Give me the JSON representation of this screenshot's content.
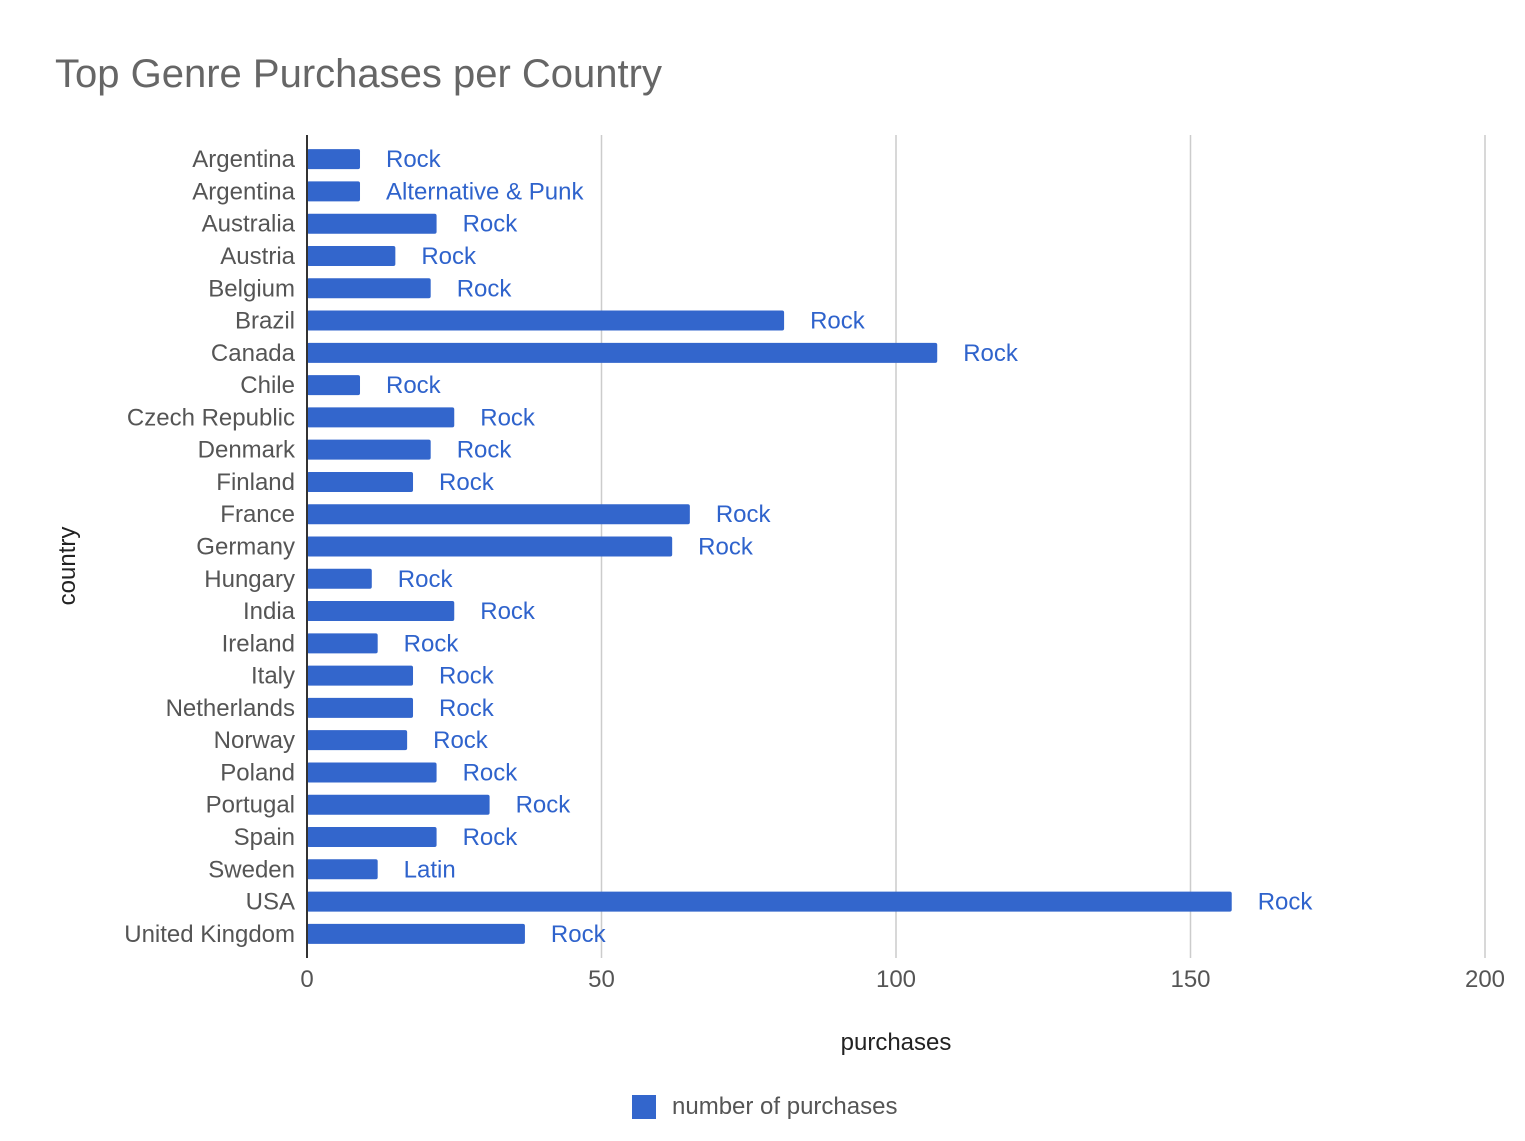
{
  "chart_data": {
    "type": "bar",
    "orientation": "horizontal",
    "title": "Top Genre Purchases per Country",
    "xlabel": "purchases",
    "ylabel": "country",
    "xlim": [
      0,
      200
    ],
    "xticks": [
      "0",
      "50",
      "100",
      "150",
      "200"
    ],
    "grid": true,
    "legend_position": "bottom",
    "bar_color": "#3366cc",
    "label_color": "#2f63cc",
    "categories": [
      "Argentina",
      "Argentina",
      "Australia",
      "Austria",
      "Belgium",
      "Brazil",
      "Canada",
      "Chile",
      "Czech Republic",
      "Denmark",
      "Finland",
      "France",
      "Germany",
      "Hungary",
      "India",
      "Ireland",
      "Italy",
      "Netherlands",
      "Norway",
      "Poland",
      "Portugal",
      "Spain",
      "Sweden",
      "USA",
      "United Kingdom"
    ],
    "series": [
      {
        "name": "number of purchases",
        "values": [
          9,
          9,
          22,
          15,
          21,
          81,
          107,
          9,
          25,
          21,
          18,
          65,
          62,
          11,
          25,
          12,
          18,
          18,
          17,
          22,
          31,
          22,
          12,
          157,
          37
        ],
        "labels": [
          "Rock",
          "Alternative & Punk",
          "Rock",
          "Rock",
          "Rock",
          "Rock",
          "Rock",
          "Rock",
          "Rock",
          "Rock",
          "Rock",
          "Rock",
          "Rock",
          "Rock",
          "Rock",
          "Rock",
          "Rock",
          "Rock",
          "Rock",
          "Rock",
          "Rock",
          "Rock",
          "Latin",
          "Rock",
          "Rock"
        ]
      }
    ]
  }
}
